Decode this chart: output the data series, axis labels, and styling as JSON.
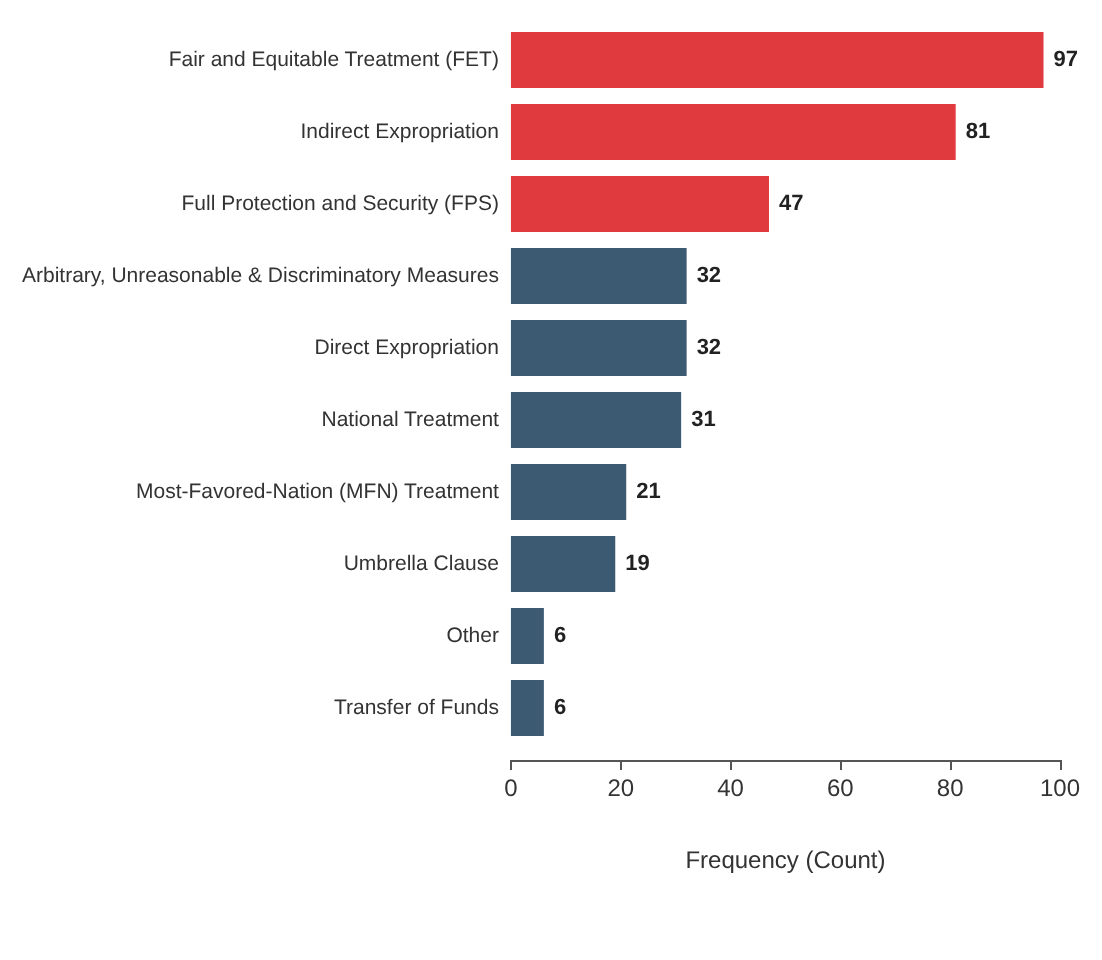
{
  "chart_data": {
    "type": "bar",
    "orientation": "horizontal",
    "categories": [
      "Fair and Equitable Treatment (FET)",
      "Indirect Expropriation",
      "Full Protection and Security (FPS)",
      "Arbitrary, Unreasonable & Discriminatory Measures",
      "Direct Expropriation",
      "National Treatment",
      "Most-Favored-Nation (MFN) Treatment",
      "Umbrella Clause",
      "Other",
      "Transfer of Funds"
    ],
    "values": [
      97,
      81,
      47,
      32,
      32,
      31,
      21,
      19,
      6,
      6
    ],
    "colors": [
      "#e0393e",
      "#e0393e",
      "#e0393e",
      "#3d5a73",
      "#3d5a73",
      "#3d5a73",
      "#3d5a73",
      "#3d5a73",
      "#3d5a73",
      "#3d5a73"
    ],
    "xlabel": "Frequency (Count)",
    "xlim": [
      0,
      100
    ],
    "xticks": [
      0,
      20,
      40,
      60,
      80,
      100
    ],
    "data_labels": true
  }
}
